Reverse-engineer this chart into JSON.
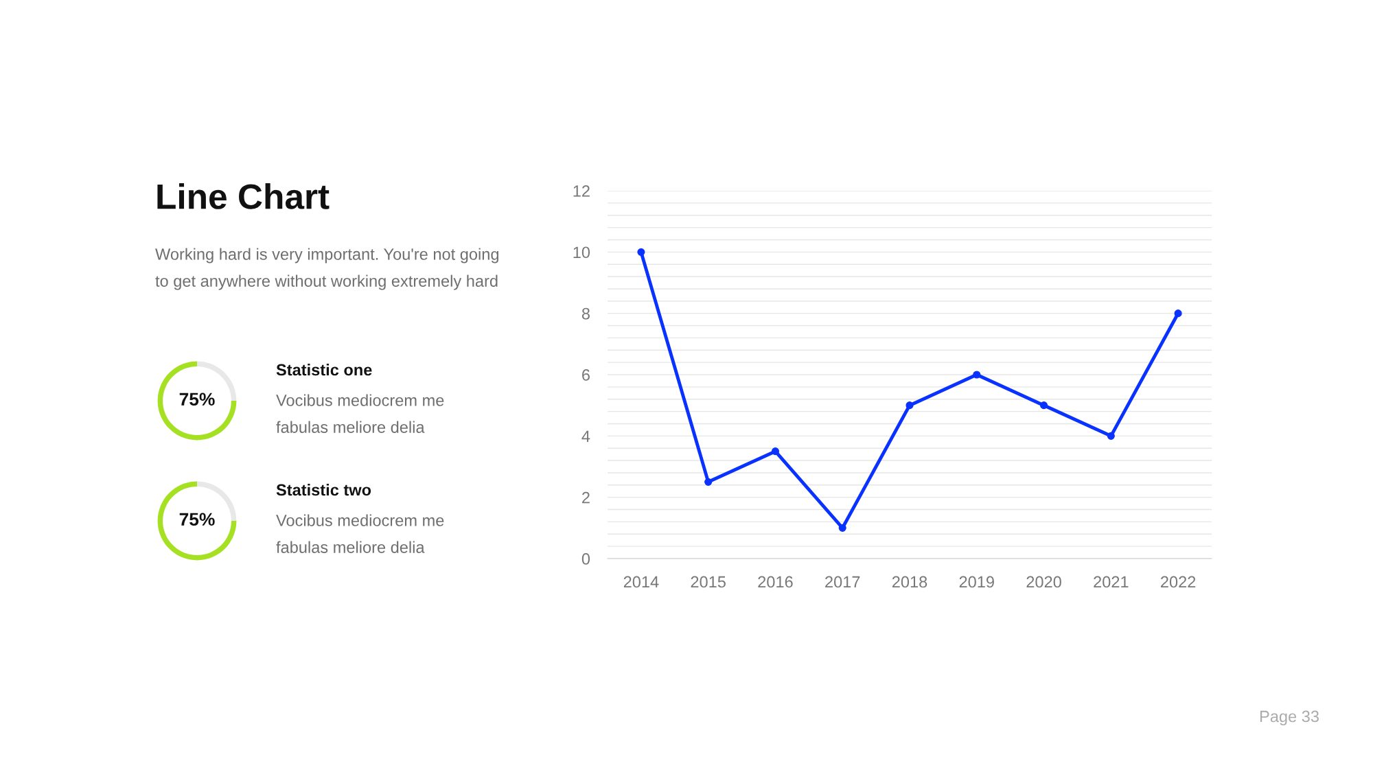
{
  "chart_data": [
    {
      "type": "other",
      "title": "Line Chart",
      "subtitle": "Working hard is very important. You're not going\nto get anywhere without working extremely hard",
      "annotations": [
        "Page 33"
      ]
    },
    {
      "type": "donut",
      "title": "Statistic one",
      "subtitle": "Vocibus mediocrem me\nfabulas meliore delia",
      "categories": [
        null,
        null
      ],
      "values": [
        75,
        25
      ],
      "colors": [
        "#a6e022",
        "#e8e8e8"
      ],
      "value_labels": [
        "75%",
        null
      ]
    },
    {
      "type": "donut",
      "title": "Statistic two",
      "subtitle": "Vocibus mediocrem me\nfabulas meliore delia",
      "categories": [
        null,
        null
      ],
      "values": [
        75,
        25
      ],
      "colors": [
        "#a6e022",
        "#e8e8e8"
      ],
      "value_labels": [
        "75%",
        null
      ]
    },
    {
      "type": "line",
      "categories": [
        "2014",
        "2015",
        "2016",
        "2017",
        "2018",
        "2019",
        "2020",
        "2021",
        "2022"
      ],
      "series": [
        {
          "color": "#0a32ff",
          "values": [
            10,
            2.5,
            3.5,
            1,
            5,
            6,
            5,
            4,
            8
          ]
        }
      ],
      "ylim": [
        0,
        12
      ],
      "yticks": [
        0,
        {
          "value": 0.4,
          "label": null
        },
        {
          "value": 0.8,
          "label": null
        },
        {
          "value": 1.2,
          "label": null
        },
        {
          "value": 1.6,
          "label": null
        },
        2,
        {
          "value": 2.4,
          "label": null
        },
        {
          "value": 2.8,
          "label": null
        },
        {
          "value": 3.2,
          "label": null
        },
        {
          "value": 3.6,
          "label": null
        },
        4,
        {
          "value": 4.4,
          "label": null
        },
        {
          "value": 4.8,
          "label": null
        },
        {
          "value": 5.2,
          "label": null
        },
        {
          "value": 5.6,
          "label": null
        },
        6,
        {
          "value": 6.4,
          "label": null
        },
        {
          "value": 6.8,
          "label": null
        },
        {
          "value": 7.2,
          "label": null
        },
        {
          "value": 7.6,
          "label": null
        },
        8,
        {
          "value": 8.4,
          "label": null
        },
        {
          "value": 8.8,
          "label": null
        },
        {
          "value": 9.2,
          "label": null
        },
        {
          "value": 9.6,
          "label": null
        },
        10,
        {
          "value": 10.4,
          "label": null
        },
        {
          "value": 10.8,
          "label": null
        },
        {
          "value": 11.2,
          "label": null
        },
        {
          "value": 11.6,
          "label": null
        },
        12
      ],
      "grid": "y",
      "marker": "circle",
      "line_style": "solid"
    }
  ]
}
